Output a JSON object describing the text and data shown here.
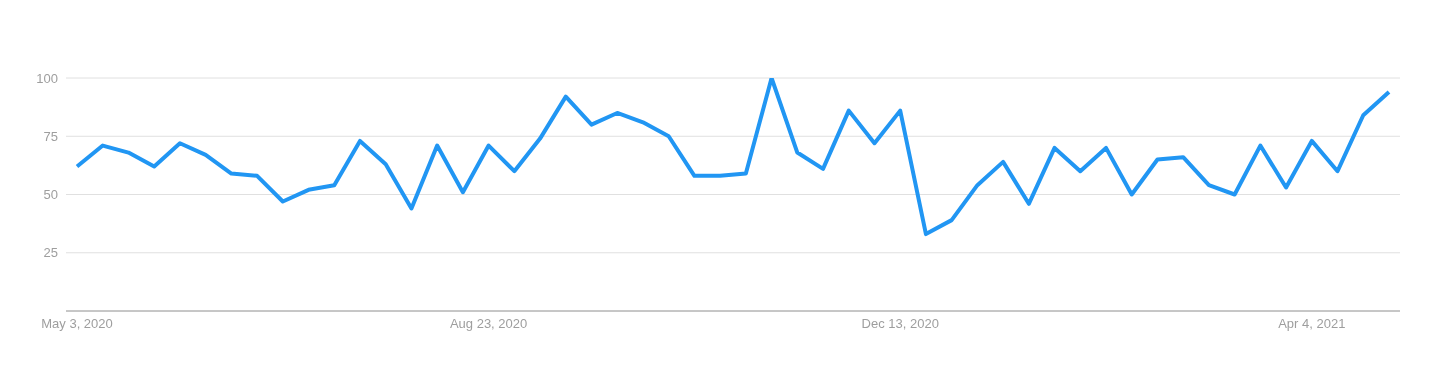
{
  "chart_data": {
    "type": "line",
    "x": [
      "2020-05-03",
      "2020-05-10",
      "2020-05-17",
      "2020-05-24",
      "2020-05-31",
      "2020-06-07",
      "2020-06-14",
      "2020-06-21",
      "2020-06-28",
      "2020-07-05",
      "2020-07-12",
      "2020-07-19",
      "2020-07-26",
      "2020-08-02",
      "2020-08-09",
      "2020-08-16",
      "2020-08-23",
      "2020-08-30",
      "2020-09-06",
      "2020-09-13",
      "2020-09-20",
      "2020-09-27",
      "2020-10-04",
      "2020-10-11",
      "2020-10-18",
      "2020-10-25",
      "2020-11-01",
      "2020-11-08",
      "2020-11-15",
      "2020-11-22",
      "2020-11-29",
      "2020-12-06",
      "2020-12-13",
      "2020-12-20",
      "2020-12-27",
      "2021-01-03",
      "2021-01-10",
      "2021-01-17",
      "2021-01-24",
      "2021-01-31",
      "2021-02-07",
      "2021-02-14",
      "2021-02-21",
      "2021-02-28",
      "2021-03-07",
      "2021-03-14",
      "2021-03-21",
      "2021-03-28",
      "2021-04-04",
      "2021-04-11",
      "2021-04-18",
      "2021-04-25"
    ],
    "series": [
      {
        "color": "#2196f3",
        "values": [
          62,
          71,
          68,
          62,
          72,
          67,
          59,
          58,
          47,
          52,
          54,
          73,
          63,
          44,
          71,
          51,
          71,
          60,
          74,
          92,
          80,
          85,
          81,
          75,
          58,
          58,
          59,
          100,
          68,
          61,
          86,
          72,
          86,
          33,
          39,
          54,
          64,
          46,
          70,
          60,
          70,
          50,
          65,
          66,
          54,
          50,
          71,
          53,
          73,
          60,
          84,
          94
        ]
      }
    ],
    "xlim": [
      "2020-04-30",
      "2021-04-28"
    ],
    "xticks": [
      {
        "value": "2020-05-03",
        "label": "May 3, 2020"
      },
      {
        "value": "2020-08-23",
        "label": "Aug 23, 2020"
      },
      {
        "value": "2020-12-13",
        "label": "Dec 13, 2020"
      },
      {
        "value": "2021-04-04",
        "label": "Apr 4, 2021"
      }
    ],
    "ylim": [
      0,
      100
    ],
    "yticks": [
      25,
      50,
      75,
      100
    ],
    "grid": "y",
    "legend": false,
    "marker": "none",
    "line_style": "solid"
  }
}
